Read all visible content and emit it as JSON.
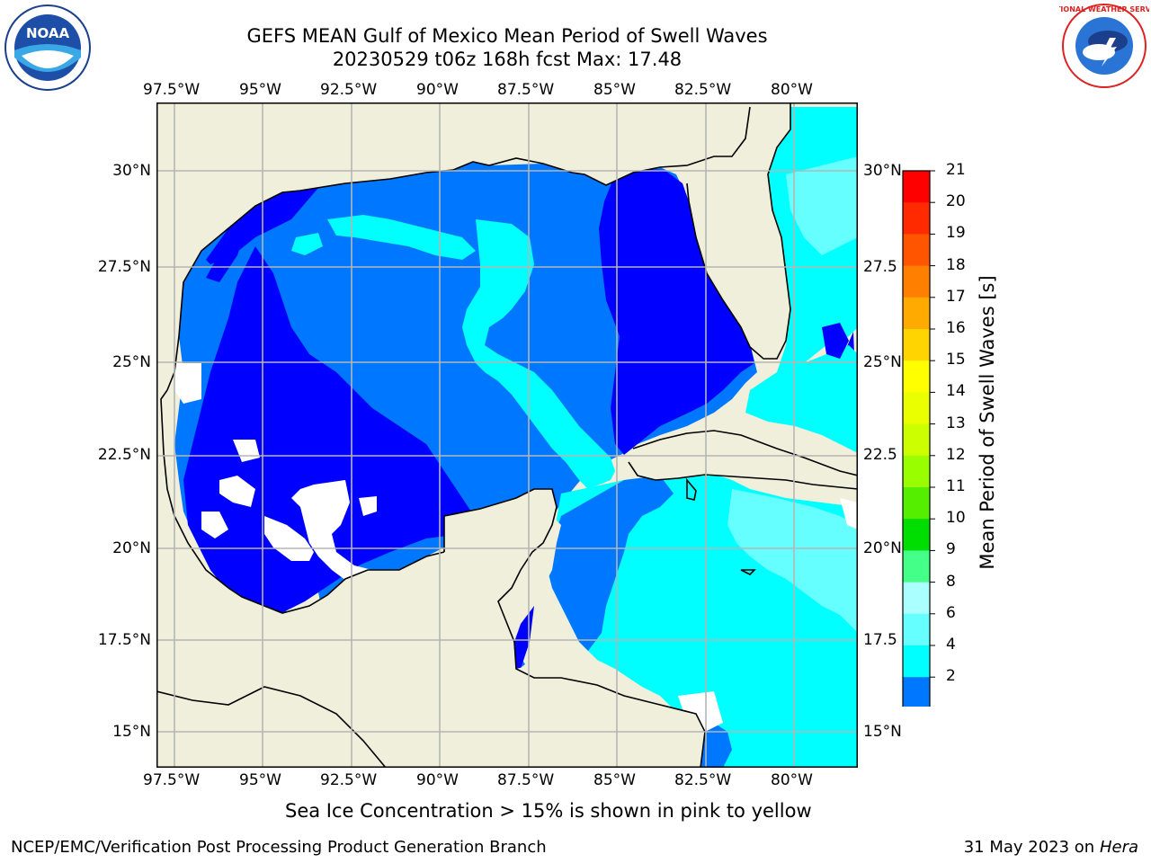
{
  "title_line1": "GEFS MEAN Gulf of Mexico Mean Period of Swell Waves",
  "title_line2": "20230529 t06z 168h fcst   Max: 17.48",
  "lon_labels": [
    "97.5°W",
    "95°W",
    "92.5°W",
    "90°W",
    "87.5°W",
    "85°W",
    "82.5°W",
    "80°W"
  ],
  "lat_labels_left": [
    "30°N",
    "27.5°N",
    "25°N",
    "22.5°N",
    "20°N",
    "17.5°N",
    "15°N"
  ],
  "lat_labels_right": [
    "30°N",
    "27.5",
    "25°N",
    "22.5",
    "20°N",
    "17.5",
    "15°N"
  ],
  "colorbar": {
    "label": "Mean Period of Swell Waves [s]",
    "ticks": [
      "21",
      "20",
      "19",
      "18",
      "17",
      "16",
      "15",
      "14",
      "13",
      "12",
      "11",
      "10",
      "9",
      "8",
      "6",
      "4",
      "2"
    ],
    "colors": [
      "#ff0000",
      "#ff2a00",
      "#ff5500",
      "#ff7f00",
      "#ffaa00",
      "#ffd400",
      "#ffff00",
      "#eaff00",
      "#ccff00",
      "#99ff00",
      "#55ee00",
      "#00dd00",
      "#44ff88",
      "#aaffff",
      "#66ffff",
      "#00ffff",
      "#0077ff",
      "#0000ff"
    ]
  },
  "colors": {
    "land": "#efefdc",
    "ocean_dark": "#0000ff",
    "ocean_mid": "#0077ff",
    "ocean_light": "#00ffff",
    "ocean_pale": "#66ffff",
    "ice_yellow": "#eeee00",
    "ice_green": "#ccff00",
    "ice_orange": "#ffaa00"
  },
  "caption": "Sea Ice Concentration > 15% is shown in pink to yellow",
  "footer_left": "NCEP/EMC/Verification Post Processing Product Generation Branch",
  "footer_date": "31 May 2023 on",
  "footer_machine": "Hera",
  "logo_left_text": "NOAA",
  "logo_right_text": "NATIONAL WEATHER SERVICE"
}
